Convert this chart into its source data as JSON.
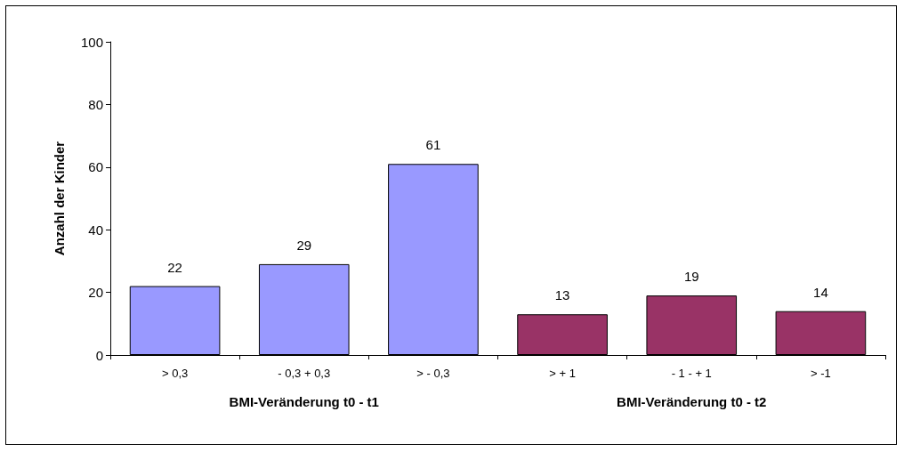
{
  "chart_data": {
    "type": "bar",
    "ylabel": "Anzahl der Kinder",
    "categories": [
      "> 0,3",
      "- 0,3 + 0,3",
      "> - 0,3",
      "> + 1",
      "- 1 - + 1",
      "> -1"
    ],
    "values": [
      22,
      29,
      61,
      13,
      19,
      14
    ],
    "colors": [
      "#9999ff",
      "#9999ff",
      "#9999ff",
      "#993366",
      "#993366",
      "#993366"
    ],
    "ylim": [
      0,
      100
    ],
    "yticks": [
      0,
      20,
      40,
      60,
      80,
      100
    ],
    "data_labels": true,
    "annotations": [
      "BMI-Veränderung t0 - t1",
      "BMI-Veränderung t0 - t2"
    ]
  }
}
